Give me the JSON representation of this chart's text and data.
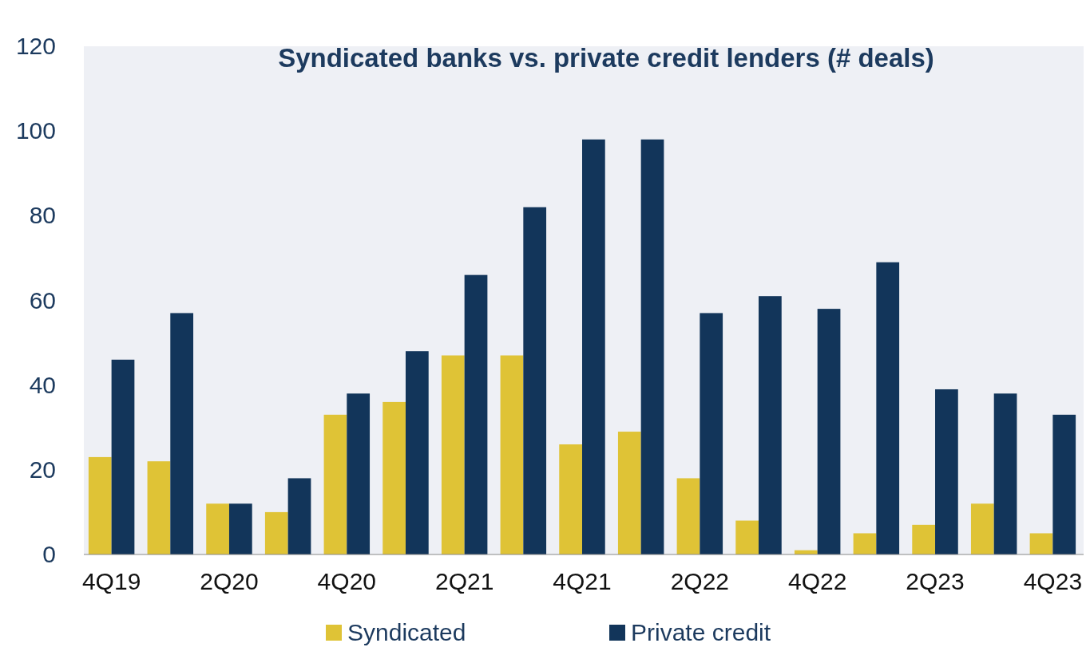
{
  "chart_data": {
    "type": "bar",
    "title": "Syndicated banks vs. private credit lenders (# deals)",
    "categories": [
      "4Q19",
      null,
      "2Q20",
      null,
      "4Q20",
      null,
      "2Q21",
      null,
      "4Q21",
      null,
      "2Q22",
      null,
      "4Q22",
      null,
      "2Q23",
      null,
      "4Q23"
    ],
    "series": [
      {
        "name": "Syndicated",
        "color": "#dfc336",
        "values": [
          23,
          22,
          12,
          10,
          33,
          36,
          47,
          47,
          26,
          29,
          18,
          8,
          1,
          5,
          7,
          12,
          5
        ]
      },
      {
        "name": "Private credit",
        "color": "#12355a",
        "values": [
          46,
          57,
          12,
          18,
          38,
          48,
          66,
          82,
          98,
          98,
          57,
          61,
          58,
          69,
          39,
          38,
          33
        ]
      }
    ],
    "ylim": [
      0,
      120
    ],
    "yticks": [
      0,
      20,
      40,
      60,
      80,
      100,
      120
    ],
    "grid": false,
    "legend": "bottom"
  }
}
